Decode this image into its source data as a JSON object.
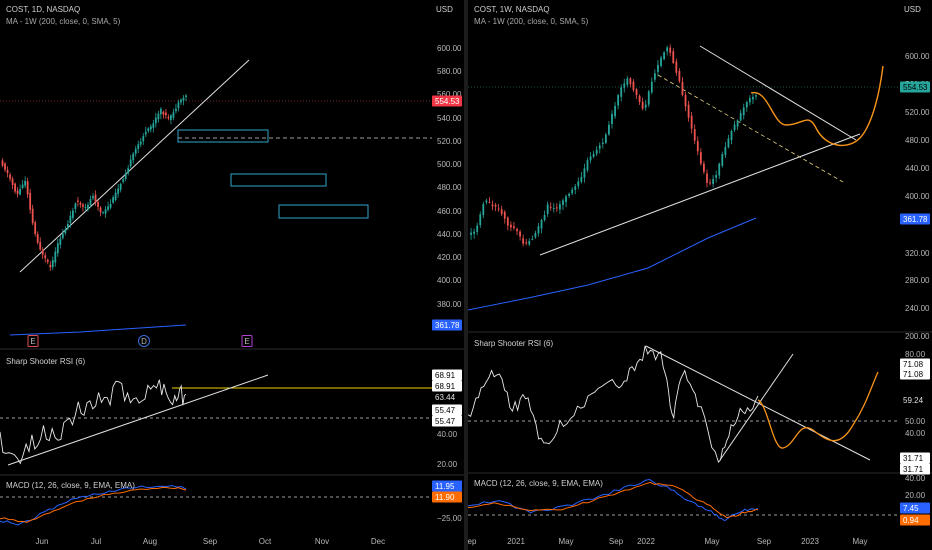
{
  "left": {
    "header_main": "COST, 1D, NASDAQ",
    "header_ma": "MA - 1W (200, close, 0, SMA, 5)",
    "currency": "USD",
    "price_ticks": [
      "600.00",
      "580.00",
      "560.00",
      "540.00",
      "520.00",
      "500.00",
      "480.00",
      "460.00",
      "440.00",
      "420.00",
      "400.00",
      "380.00",
      "360.00"
    ],
    "price_badge": "554.53",
    "ma_badge": "361.78",
    "event_markers": [
      "E",
      "D",
      "E"
    ],
    "rsi_title": "Sharp Shooter RSI (6)",
    "rsi_ticks": [
      "40.00",
      "20.00"
    ],
    "rsi_badges": [
      "68.91",
      "68.91",
      "63.44",
      "55.47",
      "55.47"
    ],
    "macd_title": "MACD (12, 26, close, 9, EMA, EMA)",
    "macd_ticks": [
      "−25.00"
    ],
    "macd_badges": [
      "11.95",
      "11.90"
    ],
    "time_labels": [
      "Jun",
      "Jul",
      "Aug",
      "Sep",
      "Oct",
      "Nov",
      "Dec"
    ]
  },
  "right": {
    "header_main": "COST, 1W, NASDAQ",
    "header_ma": "MA - 1W (200, close, 0, SMA, 5)",
    "currency": "USD",
    "price_ticks": [
      "600.00",
      "560.00",
      "520.00",
      "480.00",
      "440.00",
      "400.00",
      "320.00",
      "280.00",
      "240.00",
      "200.00"
    ],
    "price_badge": "554.53",
    "ma_badge": "361.78",
    "rsi_title": "Sharp Shooter RSI (6)",
    "rsi_ticks": [
      "80.00",
      "50.00",
      "40.00"
    ],
    "rsi_badges": [
      "71.08",
      "71.08",
      "59.24",
      "31.71",
      "31.71"
    ],
    "macd_title": "MACD (12, 26, close, 9, EMA, EMA)",
    "macd_ticks": [
      "40.00",
      "20.00"
    ],
    "macd_badges": [
      "7.45",
      "0.94"
    ],
    "time_labels": [
      "ep",
      "2021",
      "May",
      "Sep",
      "2022",
      "May",
      "Sep",
      "2023",
      "May"
    ]
  },
  "colors": {
    "up": "#26a69a",
    "down": "#ef5350",
    "ma": "#2962ff",
    "rsi": "#e8e8e8",
    "macd": "#2962ff",
    "signal": "#ff6d00",
    "projection": "#f7931a",
    "rect": "#2fa4c9",
    "yellow_line": "#f0d000",
    "price_badge": "#f23645",
    "ma_badge": "#2962ff"
  }
}
